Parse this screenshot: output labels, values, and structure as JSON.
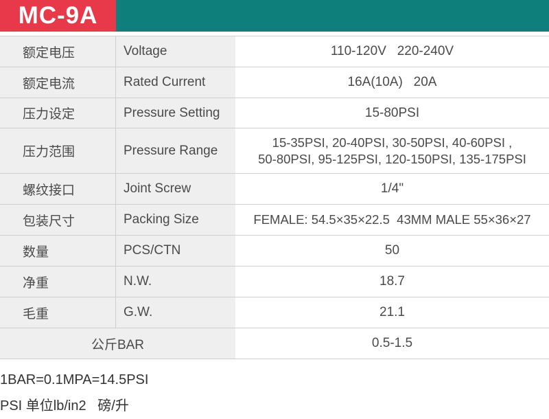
{
  "header": {
    "model": "MC-9A"
  },
  "rows": [
    {
      "cn": "额定电压",
      "en": "Voltage",
      "value": "110-120V   220-240V"
    },
    {
      "cn": "额定电流",
      "en": "Rated Current",
      "value": "16A(10A)   20A"
    },
    {
      "cn": "压力设定",
      "en": "Pressure Setting",
      "value": "15-80PSI"
    },
    {
      "cn": "压力范围",
      "en": "Pressure Range",
      "value_line1": "15-35PSI, 20-40PSI, 30-50PSI, 40-60PSI ,",
      "value_line2": "50-80PSI, 95-125PSI, 120-150PSI, 135-175PSI"
    },
    {
      "cn": "螺纹接口",
      "en": "Joint Screw",
      "value": "1/4\""
    },
    {
      "cn": "包装尺寸",
      "en": "Packing Size",
      "value": "FEMALE: 54.5×35×22.5  43MM MALE 55×36×27"
    },
    {
      "cn": "数量",
      "en": "PCS/CTN",
      "value": "50"
    },
    {
      "cn": "净重",
      "en": "N.W.",
      "value": "18.7"
    },
    {
      "cn": "毛重",
      "en": "G.W.",
      "value": "21.1"
    },
    {
      "label": "公斤BAR",
      "value": "0.5-1.5"
    }
  ],
  "notes": {
    "line1": "1BAR=0.1MPA=14.5PSI",
    "line2": "PSI 单位lb/in2   磅/升"
  }
}
